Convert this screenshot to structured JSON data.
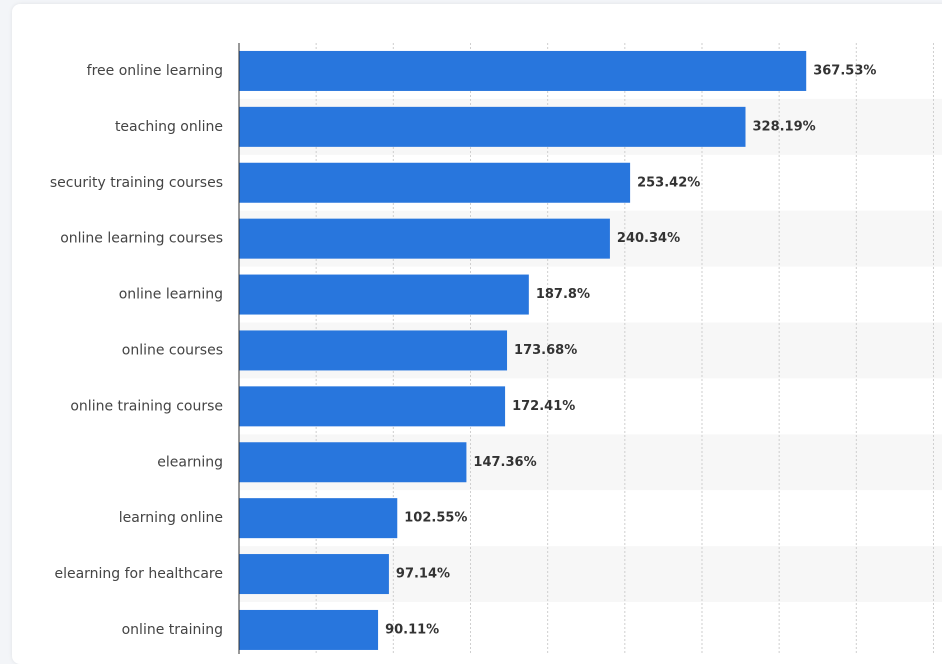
{
  "colors": {
    "bar": "#2876dd",
    "stripe": "#f7f7f7",
    "grid": "#cfcfcf",
    "axis": "#333333"
  },
  "chart_data": {
    "type": "bar",
    "orientation": "horizontal",
    "title": "",
    "xlabel": "",
    "ylabel": "",
    "xlim": [
      0,
      450
    ],
    "grid": true,
    "categories": [
      "free online learning",
      "teaching online",
      "security training courses",
      "online learning courses",
      "online learning",
      "online courses",
      "online training course",
      "elearning",
      "learning online",
      "elearning for healthcare",
      "online training"
    ],
    "values": [
      367.53,
      328.19,
      253.42,
      240.34,
      187.8,
      173.68,
      172.41,
      147.36,
      102.55,
      97.14,
      90.11
    ],
    "value_labels": [
      "367.53%",
      "328.19%",
      "253.42%",
      "240.34%",
      "187.8%",
      "173.68%",
      "172.41%",
      "147.36%",
      "102.55%",
      "97.14%",
      "90.11%"
    ]
  }
}
